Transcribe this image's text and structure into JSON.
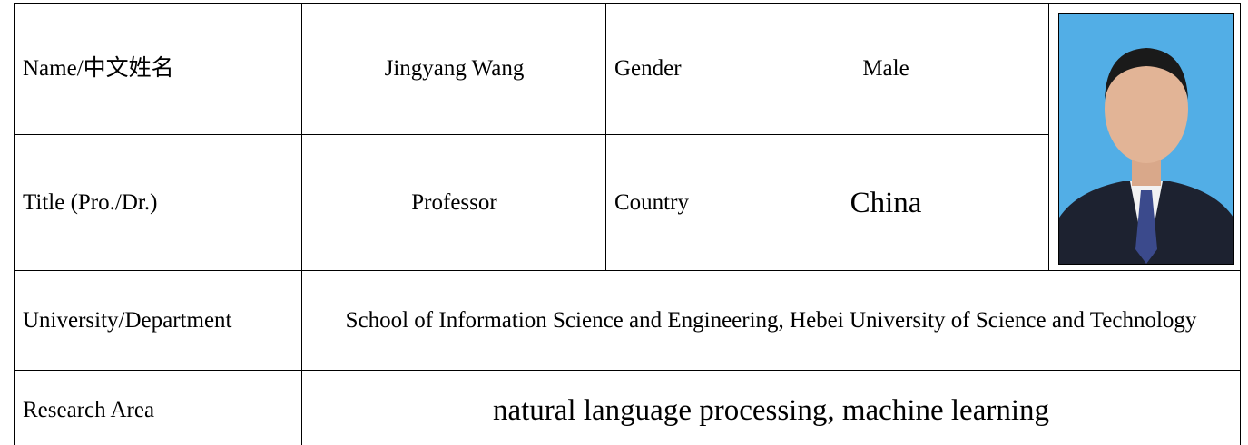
{
  "table": {
    "rows": [
      [
        "Name/中文姓名",
        "Jingyang Wang",
        "Gender",
        "Male"
      ],
      [
        "Title (Pro./Dr.)",
        "Professor",
        "Country",
        "China"
      ],
      [
        "University/Department",
        "School of Information Science and Engineering, Hebei University of Science and Technology"
      ],
      [
        "Research Area",
        "natural language processing, machine learning"
      ]
    ]
  }
}
